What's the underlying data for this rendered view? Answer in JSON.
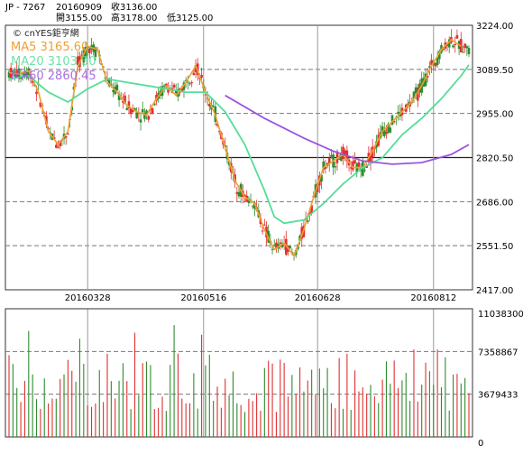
{
  "header": {
    "symbol": "JP - 7267",
    "date": "20160909",
    "close_label": "收3136.00",
    "open_label": "開3155.00",
    "high_label": "高3178.00",
    "low_label": "低3125.00"
  },
  "watermark": "© cnYES鉅亨網",
  "legend": {
    "ma5": "MA5 3165.60",
    "ma20": "MA20 3103.30",
    "ma60": "MA60 2860.45"
  },
  "colors": {
    "up": "#e03030",
    "down": "#2e8b2e",
    "ma5": "#f0a030",
    "ma20": "#55dd99",
    "ma60": "#9a55dd",
    "grid_dash": "#777777",
    "frame": "#333333"
  },
  "chart_data": [
    {
      "type": "candlestick",
      "title": "",
      "x_tick_labels": [
        "20160328",
        "20160516",
        "20160628",
        "20160812"
      ],
      "y_tick_labels": [
        "3224.00",
        "3089.50",
        "2955.00",
        "2820.50",
        "2686.00",
        "2551.50",
        "2417.00"
      ],
      "ylim": [
        2417,
        3224
      ],
      "reference_line": 2820.5,
      "grid": "dashed horizontal at each y tick, solid vertical at date ticks",
      "last_bar": {
        "date": "20160909",
        "open": 3155,
        "high": 3178,
        "low": 3125,
        "close": 3136
      },
      "ma_lines": [
        {
          "name": "MA5",
          "last": 3165.6,
          "points": [
            [
              0,
              3080
            ],
            [
              5,
              3075
            ],
            [
              10,
              3085
            ],
            [
              15,
              3020
            ],
            [
              20,
              2900
            ],
            [
              25,
              2860
            ],
            [
              30,
              2900
            ],
            [
              35,
              3100
            ],
            [
              40,
              3160
            ],
            [
              45,
              3150
            ],
            [
              50,
              3050
            ],
            [
              55,
              3020
            ],
            [
              60,
              2980
            ],
            [
              65,
              2960
            ],
            [
              70,
              2950
            ],
            [
              75,
              3000
            ],
            [
              80,
              3040
            ],
            [
              85,
              3010
            ],
            [
              90,
              3050
            ],
            [
              95,
              3100
            ],
            [
              100,
              3020
            ],
            [
              105,
              2950
            ],
            [
              110,
              2850
            ],
            [
              115,
              2750
            ],
            [
              120,
              2700
            ],
            [
              125,
              2680
            ],
            [
              130,
              2600
            ],
            [
              135,
              2540
            ],
            [
              140,
              2560
            ],
            [
              145,
              2520
            ],
            [
              150,
              2600
            ],
            [
              155,
              2700
            ],
            [
              160,
              2790
            ],
            [
              165,
              2810
            ],
            [
              170,
              2830
            ],
            [
              175,
              2790
            ],
            [
              180,
              2790
            ],
            [
              185,
              2840
            ],
            [
              190,
              2900
            ],
            [
              195,
              2930
            ],
            [
              200,
              2960
            ],
            [
              205,
              2990
            ],
            [
              210,
              3040
            ],
            [
              215,
              3100
            ],
            [
              220,
              3150
            ],
            [
              225,
              3180
            ],
            [
              230,
              3160
            ]
          ]
        },
        {
          "name": "MA20",
          "last": 3103.3,
          "points": [
            [
              0,
              3060
            ],
            [
              10,
              3070
            ],
            [
              20,
              3020
            ],
            [
              30,
              2990
            ],
            [
              40,
              3030
            ],
            [
              50,
              3060
            ],
            [
              60,
              3050
            ],
            [
              70,
              3040
            ],
            [
              80,
              3030
            ],
            [
              90,
              3020
            ],
            [
              100,
              3020
            ],
            [
              110,
              2960
            ],
            [
              120,
              2860
            ],
            [
              130,
              2720
            ],
            [
              135,
              2640
            ],
            [
              140,
              2620
            ],
            [
              150,
              2630
            ],
            [
              160,
              2680
            ],
            [
              170,
              2740
            ],
            [
              180,
              2790
            ],
            [
              190,
              2820
            ],
            [
              200,
              2890
            ],
            [
              210,
              2940
            ],
            [
              220,
              3000
            ],
            [
              230,
              3070
            ],
            [
              234,
              3103
            ]
          ]
        },
        {
          "name": "MA60",
          "last": 2860.45,
          "points": [
            [
              110,
              3010
            ],
            [
              130,
              2940
            ],
            [
              150,
              2880
            ],
            [
              165,
              2840
            ],
            [
              180,
              2810
            ],
            [
              195,
              2800
            ],
            [
              210,
              2805
            ],
            [
              225,
              2830
            ],
            [
              234,
              2860
            ]
          ]
        }
      ]
    },
    {
      "type": "bar",
      "title": "",
      "y_tick_labels": [
        "11038300",
        "7358867",
        "3679433",
        "0"
      ],
      "ylim": [
        0,
        11038300
      ]
    }
  ]
}
